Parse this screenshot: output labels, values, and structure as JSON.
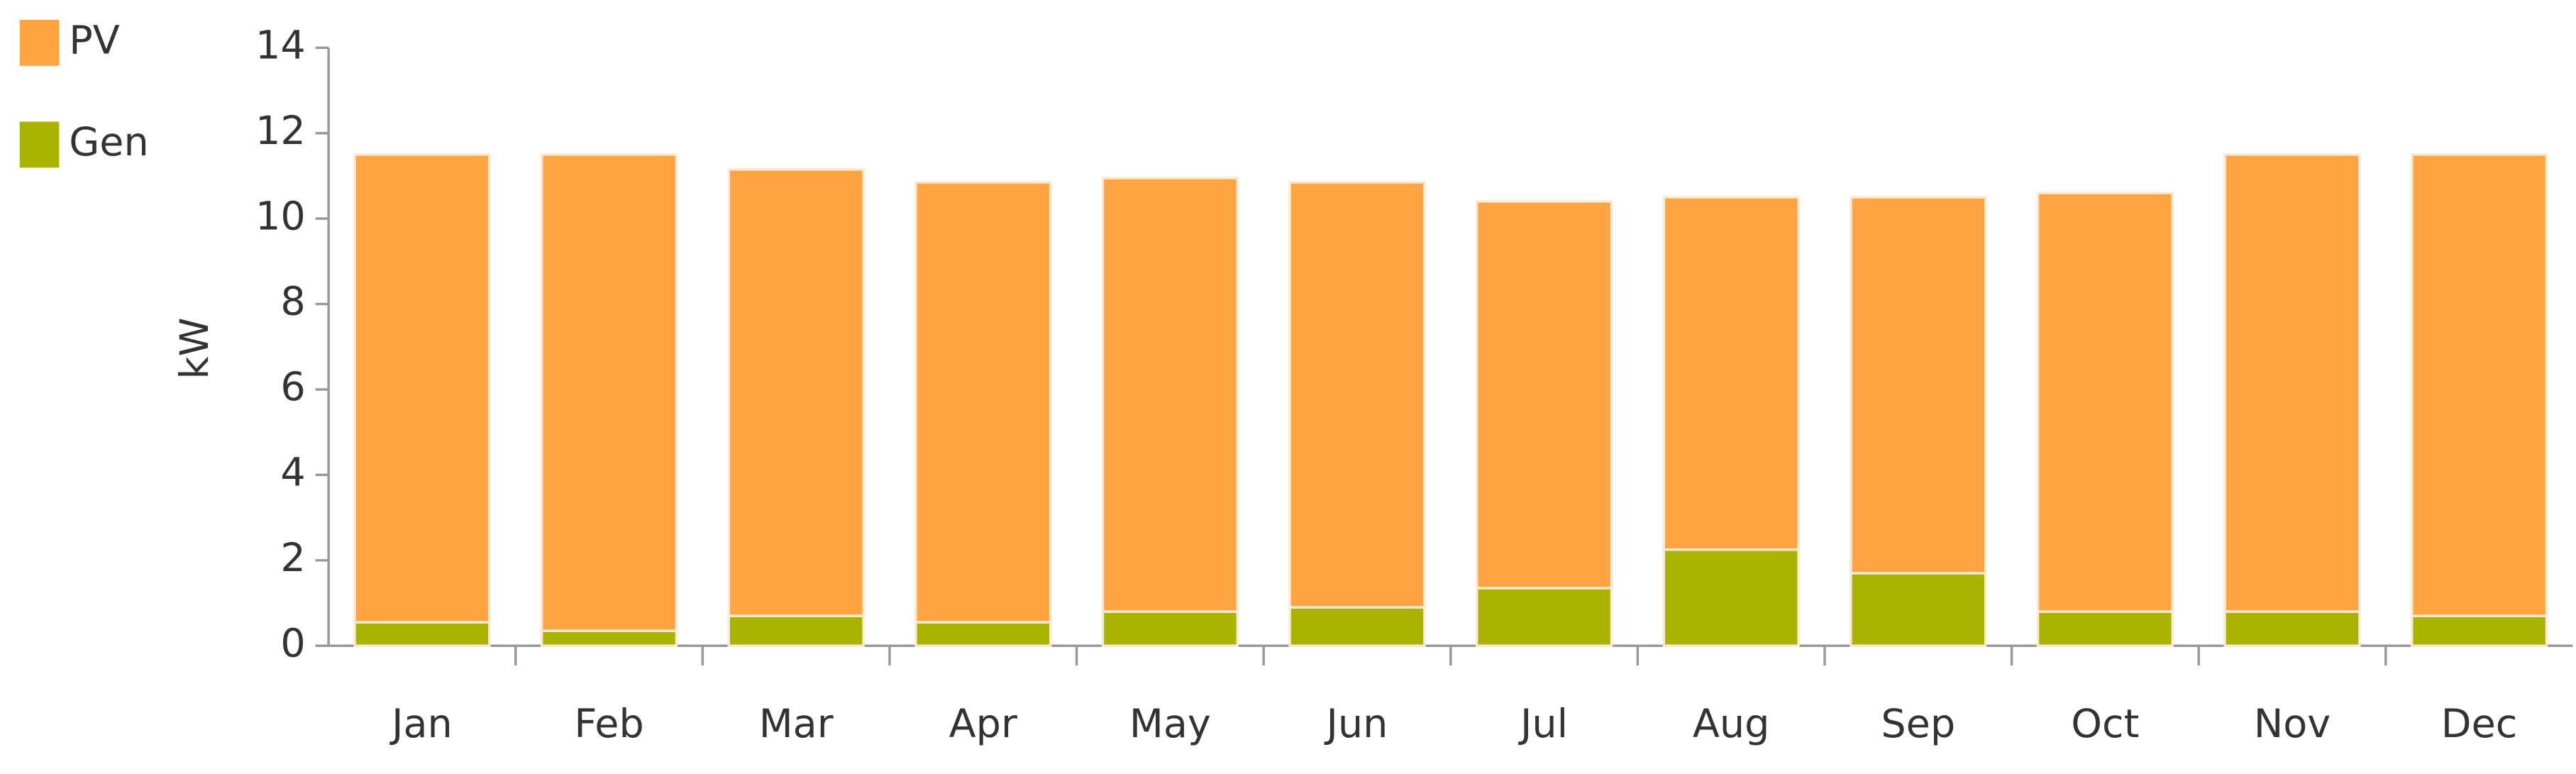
{
  "chart_data": {
    "type": "stacked_bar",
    "y_label": "kW",
    "categories": [
      "Jan",
      "Feb",
      "Mar",
      "Apr",
      "May",
      "Jun",
      "Jul",
      "Aug",
      "Sep",
      "Oct",
      "Nov",
      "Dec"
    ],
    "series": [
      {
        "name": "Gen",
        "color": "#a8b400",
        "values": [
          0.55,
          0.35,
          0.7,
          0.55,
          0.8,
          0.9,
          1.35,
          2.25,
          1.7,
          0.8,
          0.8,
          0.7
        ]
      },
      {
        "name": "PV",
        "color": "#ffa442",
        "values": [
          10.95,
          11.15,
          10.45,
          10.3,
          10.15,
          9.95,
          9.05,
          8.25,
          8.8,
          9.8,
          10.7,
          10.8
        ]
      }
    ],
    "ylim": [
      0,
      14
    ],
    "yticks": [
      0,
      2,
      4,
      6,
      8,
      10,
      12,
      14
    ],
    "grid": false
  }
}
